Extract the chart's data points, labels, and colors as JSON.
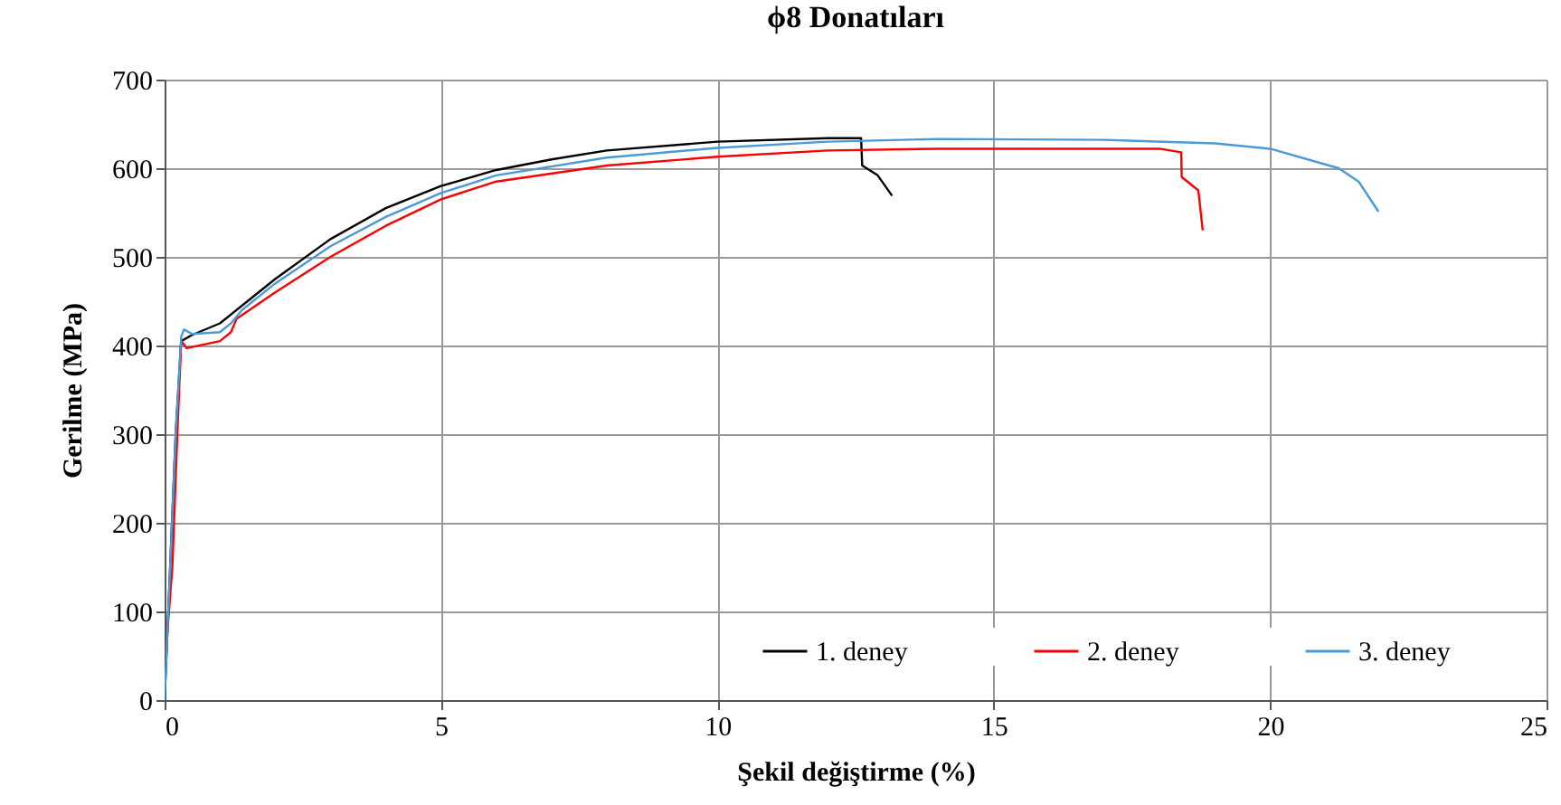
{
  "chart_data": {
    "type": "line",
    "title": "ϕ8 Donatıları",
    "xlabel": "Şekil değiştirme (%)",
    "ylabel": "Gerilme (MPa)",
    "xlim": [
      0,
      25
    ],
    "xticks": [
      0,
      5,
      10,
      15,
      20,
      25
    ],
    "ylim": [
      0,
      700
    ],
    "yticks": [
      0,
      100,
      200,
      300,
      400,
      500,
      600,
      700
    ],
    "grid": true,
    "legend": "bottom",
    "line_style": "solid",
    "marker": "none",
    "series": [
      {
        "name": "1. deney",
        "color": "#000000",
        "x": [
          0,
          0.1,
          0.2,
          0.3,
          0.5,
          1,
          1.5,
          2,
          3,
          4,
          5,
          6,
          7,
          8,
          10,
          12,
          12.6,
          12.62,
          12.9,
          13.16
        ],
        "values": [
          0,
          150,
          300,
          405,
          412,
          425,
          450,
          475,
          520,
          555,
          580,
          598,
          610,
          620,
          630,
          634,
          634,
          603,
          592,
          569
        ]
      },
      {
        "name": "2. deney",
        "color": "#ff0000",
        "x": [
          0.03,
          0.14,
          0.23,
          0.3,
          0.4,
          1,
          1.2,
          1.3,
          2,
          3,
          4,
          5,
          6,
          8,
          10,
          12,
          14,
          18,
          18.39,
          18.4,
          18.7,
          18.78
        ],
        "values": [
          60,
          150,
          300,
          405,
          397,
          405,
          415,
          430,
          460,
          500,
          535,
          565,
          585,
          603,
          613,
          620,
          622,
          622,
          618,
          590,
          575,
          530
        ]
      },
      {
        "name": "3. deney",
        "color": "#4a9ad8",
        "x": [
          0,
          0.1,
          0.2,
          0.3,
          0.35,
          0.5,
          1,
          1.2,
          1.4,
          2,
          3,
          4,
          5,
          6,
          8,
          10,
          12,
          14,
          17,
          19,
          20,
          21.24,
          21.6,
          21.96
        ],
        "values": [
          0,
          150,
          300,
          410,
          418,
          413,
          415,
          425,
          440,
          470,
          512,
          545,
          572,
          592,
          612,
          623,
          630,
          633,
          632,
          628,
          622,
          600,
          585,
          551
        ]
      }
    ]
  }
}
